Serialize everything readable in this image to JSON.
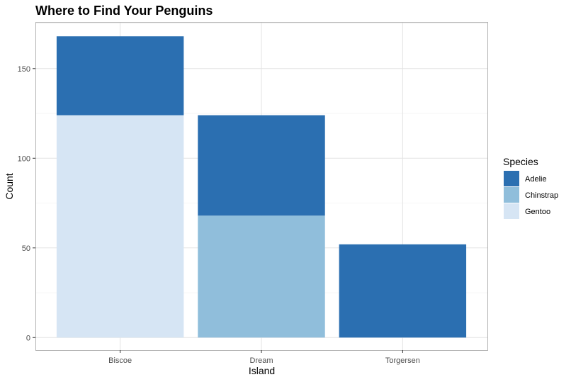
{
  "chart_data": {
    "type": "bar",
    "stacked": true,
    "title": "Where to Find Your Penguins",
    "xlabel": "Island",
    "ylabel": "Count",
    "categories": [
      "Biscoe",
      "Dream",
      "Torgersen"
    ],
    "series": [
      {
        "name": "Adelie",
        "values": [
          44,
          56,
          52
        ],
        "color": "#2b6fb1"
      },
      {
        "name": "Chinstrap",
        "values": [
          0,
          68,
          0
        ],
        "color": "#90bedb"
      },
      {
        "name": "Gentoo",
        "values": [
          124,
          0,
          0
        ],
        "color": "#d6e5f4"
      }
    ],
    "stack_order_bottom_to_top": [
      "Gentoo",
      "Chinstrap",
      "Adelie"
    ],
    "ylim": [
      -7,
      176
    ],
    "yticks": [
      0,
      50,
      100,
      150
    ],
    "grid": true,
    "legend_title": "Species",
    "legend_position": "right"
  }
}
